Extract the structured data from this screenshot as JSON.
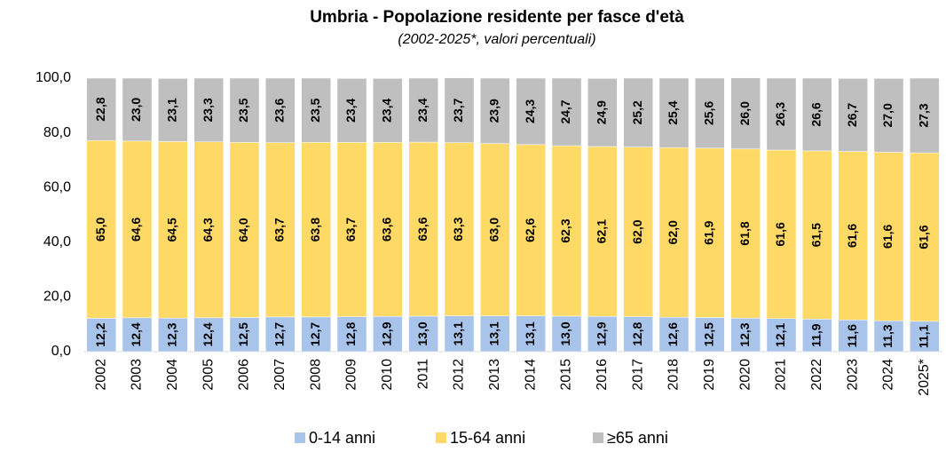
{
  "chart_data": {
    "type": "stacked_bar",
    "title": "Umbria - Popolazione residente per fasce d'età",
    "subtitle": "(2002-2025*, valori percentuali)",
    "categories": [
      "2002",
      "2003",
      "2004",
      "2005",
      "2006",
      "2007",
      "2008",
      "2009",
      "2010",
      "2011",
      "2012",
      "2013",
      "2014",
      "2015",
      "2016",
      "2017",
      "2018",
      "2019",
      "2020",
      "2021",
      "2022",
      "2023",
      "2024",
      "2025*"
    ],
    "series": [
      {
        "name": "0-14 anni",
        "color": "#a9c4eb",
        "values": [
          12.2,
          12.4,
          12.3,
          12.4,
          12.5,
          12.7,
          12.7,
          12.8,
          12.9,
          13.0,
          13.1,
          13.1,
          13.1,
          13.0,
          12.9,
          12.8,
          12.6,
          12.5,
          12.3,
          12.1,
          11.9,
          11.6,
          11.3,
          11.1
        ],
        "value_labels": [
          "12,2",
          "12,4",
          "12,3",
          "12,4",
          "12,5",
          "12,7",
          "12,7",
          "12,8",
          "12,9",
          "13,0",
          "13,1",
          "13,1",
          "13,1",
          "13,0",
          "12,9",
          "12,8",
          "12,6",
          "12,5",
          "12,3",
          "12,1",
          "11,9",
          "11,6",
          "11,3",
          "11,1"
        ]
      },
      {
        "name": "15-64 anni",
        "color": "#ffd966",
        "values": [
          65.0,
          64.6,
          64.5,
          64.3,
          64.0,
          63.7,
          63.8,
          63.7,
          63.6,
          63.6,
          63.3,
          63.0,
          62.6,
          62.3,
          62.1,
          62.0,
          62.0,
          61.9,
          61.8,
          61.6,
          61.5,
          61.6,
          61.6,
          61.6
        ],
        "value_labels": [
          "65,0",
          "64,6",
          "64,5",
          "64,3",
          "64,0",
          "63,7",
          "63,8",
          "63,7",
          "63,6",
          "63,6",
          "63,3",
          "63,0",
          "62,6",
          "62,3",
          "62,1",
          "62,0",
          "62,0",
          "61,9",
          "61,8",
          "61,6",
          "61,5",
          "61,6",
          "61,6",
          "61,6"
        ]
      },
      {
        "name": "≥65 anni",
        "color": "#bfbfbf",
        "values": [
          22.8,
          23.0,
          23.1,
          23.3,
          23.5,
          23.6,
          23.5,
          23.4,
          23.4,
          23.4,
          23.7,
          23.9,
          24.3,
          24.7,
          24.9,
          25.2,
          25.4,
          25.6,
          26.0,
          26.3,
          26.6,
          26.7,
          27.0,
          27.3
        ],
        "value_labels": [
          "22,8",
          "23,0",
          "23,1",
          "23,3",
          "23,5",
          "23,6",
          "23,5",
          "23,4",
          "23,4",
          "23,4",
          "23,7",
          "23,9",
          "24,3",
          "24,7",
          "24,9",
          "25,2",
          "25,4",
          "25,6",
          "26,0",
          "26,3",
          "26,6",
          "26,7",
          "27,0",
          "27,3"
        ]
      }
    ],
    "ylim": [
      0,
      100
    ],
    "yticks": [
      {
        "value": 0,
        "label": "0,0"
      },
      {
        "value": 20,
        "label": "20,0"
      },
      {
        "value": 40,
        "label": "40,0"
      },
      {
        "value": 60,
        "label": "60,0"
      },
      {
        "value": 80,
        "label": "80,0"
      },
      {
        "value": 100,
        "label": "100,0"
      }
    ],
    "legend": "bottom"
  }
}
